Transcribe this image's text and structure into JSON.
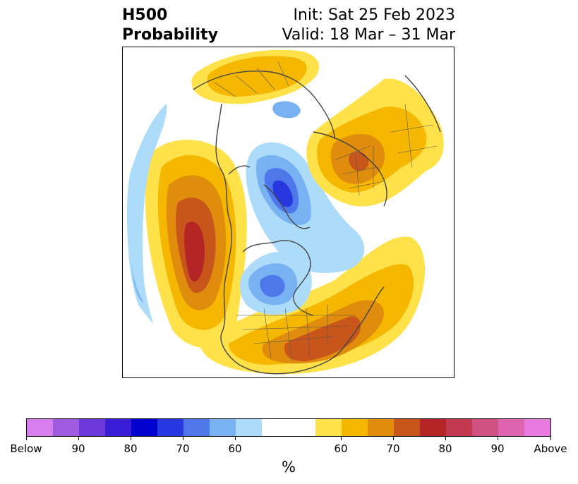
{
  "header": {
    "title_line1": "H500",
    "title_line2": "Probability",
    "init_text": "Init: Sat 25 Feb 2023",
    "valid_text": "Valid: 18 Mar – 31 Mar"
  },
  "colors": {
    "below": [
      "#d87ded",
      "#a05ae0",
      "#6c38d9",
      "#3a1dd6",
      "#0000cf",
      "#2738e0",
      "#4e78ea",
      "#78b2f2",
      "#acdcfa"
    ],
    "neutral": "#ffffff",
    "above": [
      "#ffe24a",
      "#f5b700",
      "#e08c0c",
      "#c8561a",
      "#b52525",
      "#c0394e",
      "#ce5383",
      "#dd64b0",
      "#e97ae1"
    ],
    "coastline": "#444444"
  },
  "colorbar": {
    "tick_labels": [
      "Below",
      "90",
      "80",
      "70",
      "60",
      "60",
      "70",
      "80",
      "90",
      "Above"
    ],
    "unit_label": "%"
  },
  "map": {
    "projection": "north-polar-stereographic",
    "anomalies": [
      {
        "name": "eastern-pacific-ridge",
        "sign": "above",
        "max_probability": 80
      },
      {
        "name": "eastern-us-ridge",
        "sign": "above",
        "max_probability": 70
      },
      {
        "name": "siberian-ridge",
        "sign": "above",
        "max_probability": 70
      },
      {
        "name": "europe-ridge",
        "sign": "above",
        "max_probability": 60
      },
      {
        "name": "arctic-trough",
        "sign": "below",
        "max_probability": 80
      },
      {
        "name": "canada-trough",
        "sign": "below",
        "max_probability": 70
      },
      {
        "name": "north-pacific-trough",
        "sign": "below",
        "max_probability": 60
      }
    ]
  }
}
